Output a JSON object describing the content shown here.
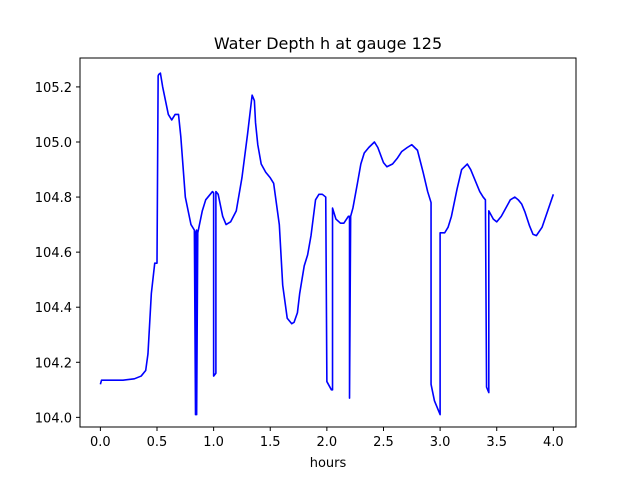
{
  "chart_data": {
    "type": "line",
    "title": "Water Depth h at gauge 125",
    "xlabel": "hours",
    "ylabel": "",
    "xlim": [
      -0.18,
      4.2
    ],
    "ylim": [
      103.965,
      105.305
    ],
    "xticks": [
      {
        "value": 0.0,
        "label": "0.0"
      },
      {
        "value": 0.5,
        "label": "0.5"
      },
      {
        "value": 1.0,
        "label": "1.0"
      },
      {
        "value": 1.5,
        "label": "1.5"
      },
      {
        "value": 2.0,
        "label": "2.0"
      },
      {
        "value": 2.5,
        "label": "2.5"
      },
      {
        "value": 3.0,
        "label": "3.0"
      },
      {
        "value": 3.5,
        "label": "3.5"
      },
      {
        "value": 4.0,
        "label": "4.0"
      }
    ],
    "yticks": [
      {
        "value": 104.0,
        "label": "104.0"
      },
      {
        "value": 104.2,
        "label": "104.2"
      },
      {
        "value": 104.4,
        "label": "104.4"
      },
      {
        "value": 104.6,
        "label": "104.6"
      },
      {
        "value": 104.8,
        "label": "104.8"
      },
      {
        "value": 105.0,
        "label": "105.0"
      },
      {
        "value": 105.2,
        "label": "105.2"
      }
    ],
    "grid": false,
    "series": [
      {
        "color": "#0000ff",
        "x": [
          0.0,
          0.01,
          0.1,
          0.2,
          0.3,
          0.36,
          0.4,
          0.42,
          0.45,
          0.48,
          0.5,
          0.51,
          0.515,
          0.53,
          0.55,
          0.6,
          0.63,
          0.66,
          0.69,
          0.71,
          0.75,
          0.8,
          0.83,
          0.84,
          0.84,
          0.85,
          0.85,
          0.86,
          0.9,
          0.93,
          0.97,
          0.99,
          1.0,
          1.0,
          1.02,
          1.02,
          1.04,
          1.08,
          1.11,
          1.15,
          1.2,
          1.25,
          1.3,
          1.34,
          1.36,
          1.37,
          1.39,
          1.42,
          1.46,
          1.5,
          1.53,
          1.58,
          1.61,
          1.65,
          1.69,
          1.71,
          1.74,
          1.76,
          1.8,
          1.83,
          1.86,
          1.9,
          1.93,
          1.96,
          1.99,
          2.0,
          2.0,
          2.04,
          2.05,
          2.05,
          2.08,
          2.12,
          2.15,
          2.19,
          2.2,
          2.2,
          2.21,
          2.23,
          2.27,
          2.3,
          2.33,
          2.37,
          2.42,
          2.45,
          2.5,
          2.53,
          2.58,
          2.62,
          2.66,
          2.71,
          2.75,
          2.8,
          2.85,
          2.89,
          2.92,
          2.92,
          2.95,
          2.99,
          3.0,
          3.0,
          3.04,
          3.07,
          3.1,
          3.15,
          3.19,
          3.24,
          3.27,
          3.31,
          3.35,
          3.38,
          3.4,
          3.41,
          3.41,
          3.43,
          3.43,
          3.47,
          3.5,
          3.54,
          3.58,
          3.62,
          3.66,
          3.69,
          3.72,
          3.75,
          3.79,
          3.82,
          3.85,
          3.9,
          3.95,
          4.0
        ],
        "y": [
          104.12,
          104.135,
          104.135,
          104.135,
          104.14,
          104.15,
          104.17,
          104.23,
          104.45,
          104.56,
          104.56,
          105.24,
          105.245,
          105.25,
          105.2,
          105.1,
          105.08,
          105.1,
          105.1,
          105.02,
          104.8,
          104.7,
          104.68,
          104.01,
          104.67,
          104.68,
          104.01,
          104.67,
          104.75,
          104.79,
          104.81,
          104.82,
          104.815,
          104.15,
          104.16,
          104.82,
          104.81,
          104.73,
          104.7,
          104.71,
          104.75,
          104.87,
          105.03,
          105.17,
          105.15,
          105.07,
          104.99,
          104.92,
          104.89,
          104.87,
          104.85,
          104.7,
          104.48,
          104.36,
          104.34,
          104.345,
          104.38,
          104.45,
          104.55,
          104.59,
          104.66,
          104.79,
          104.81,
          104.81,
          104.8,
          104.13,
          104.13,
          104.1,
          104.1,
          104.76,
          104.72,
          104.705,
          104.705,
          104.73,
          104.73,
          104.07,
          104.73,
          104.76,
          104.85,
          104.92,
          104.96,
          104.98,
          105.0,
          104.98,
          104.925,
          104.91,
          104.92,
          104.94,
          104.965,
          104.98,
          104.99,
          104.97,
          104.89,
          104.82,
          104.78,
          104.12,
          104.06,
          104.02,
          104.01,
          104.67,
          104.67,
          104.69,
          104.73,
          104.83,
          104.9,
          104.92,
          104.9,
          104.86,
          104.82,
          104.8,
          104.79,
          104.12,
          104.11,
          104.09,
          104.75,
          104.72,
          104.71,
          104.73,
          104.76,
          104.79,
          104.8,
          104.79,
          104.775,
          104.745,
          104.695,
          104.665,
          104.66,
          104.69,
          104.75,
          104.81
        ]
      }
    ]
  }
}
